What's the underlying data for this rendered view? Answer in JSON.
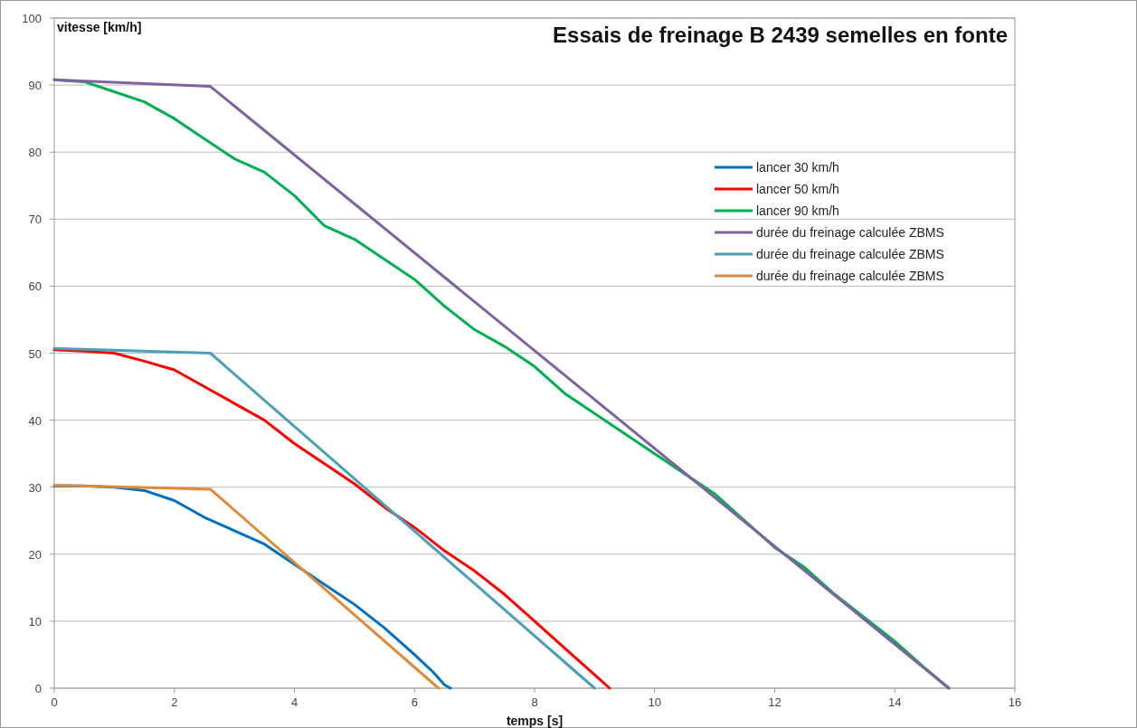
{
  "chart_data": {
    "type": "line",
    "title": "Essais de freinage B 2439 semelles en fonte",
    "xlabel": "temps [s]",
    "ylabel": "vitesse [km/h]",
    "xlim": [
      0,
      16
    ],
    "xticks": [
      0,
      2,
      4,
      6,
      8,
      10,
      12,
      14,
      16
    ],
    "ylim": [
      0,
      100
    ],
    "yticks": [
      0,
      10,
      20,
      30,
      40,
      50,
      60,
      70,
      80,
      90,
      100
    ],
    "grid": "y",
    "legend": "right",
    "marker": "none",
    "line_style": "solid",
    "series": [
      {
        "name": "lancer 30 km/h",
        "color": "#0070c0",
        "x": [
          0,
          0.5,
          1,
          1.5,
          2,
          2.5,
          3,
          3.5,
          4,
          4.5,
          5,
          5.5,
          6,
          6.3,
          6.5,
          6.6
        ],
        "values": [
          30.2,
          30.2,
          30,
          29.5,
          28,
          25.5,
          23.5,
          21.5,
          18.5,
          15.5,
          12.5,
          9,
          5,
          2.5,
          0.5,
          0
        ]
      },
      {
        "name": "lancer 50 km/h",
        "color": "#ff0000",
        "x": [
          0,
          0.5,
          1,
          1.5,
          2,
          2.6,
          3,
          3.5,
          4,
          4.5,
          5,
          5.5,
          6,
          6.5,
          7,
          7.5,
          8,
          8.5,
          9,
          9.25
        ],
        "values": [
          50.5,
          50.3,
          50,
          48.8,
          47.5,
          44.5,
          42.5,
          40,
          36.5,
          33.5,
          30.5,
          27,
          24,
          20.5,
          17.5,
          14,
          10,
          6,
          2,
          0
        ]
      },
      {
        "name": "lancer 90 km/h",
        "color": "#00b050",
        "x": [
          0,
          0.5,
          1,
          1.5,
          2,
          2.5,
          3,
          3.5,
          4,
          4.5,
          5,
          5.5,
          6,
          6.5,
          7,
          7.5,
          8,
          8.5,
          9,
          9.5,
          10,
          10.5,
          11,
          11.5,
          12,
          12.5,
          13,
          13.5,
          14,
          14.5,
          14.9
        ],
        "values": [
          90.8,
          90.5,
          89,
          87.5,
          85,
          82,
          79,
          77,
          73.5,
          69,
          67,
          64,
          61,
          57,
          53.5,
          51,
          48,
          44,
          41,
          38,
          35,
          32,
          29,
          25,
          21,
          18,
          14,
          10.5,
          7,
          3,
          0
        ]
      },
      {
        "name": "durée du freinage calculée ZBMS",
        "color": "#7f60a0",
        "x": [
          0,
          2.6,
          14.9
        ],
        "values": [
          90.8,
          89.8,
          0
        ]
      },
      {
        "name": "durée du freinage calculée ZBMS",
        "color": "#4ba0b8",
        "x": [
          0,
          2.6,
          9
        ],
        "values": [
          50.7,
          50,
          0
        ]
      },
      {
        "name": "durée du freinage calculée ZBMS",
        "color": "#e08a38",
        "x": [
          0,
          2.6,
          6.4
        ],
        "values": [
          30.3,
          29.7,
          0
        ]
      }
    ]
  }
}
